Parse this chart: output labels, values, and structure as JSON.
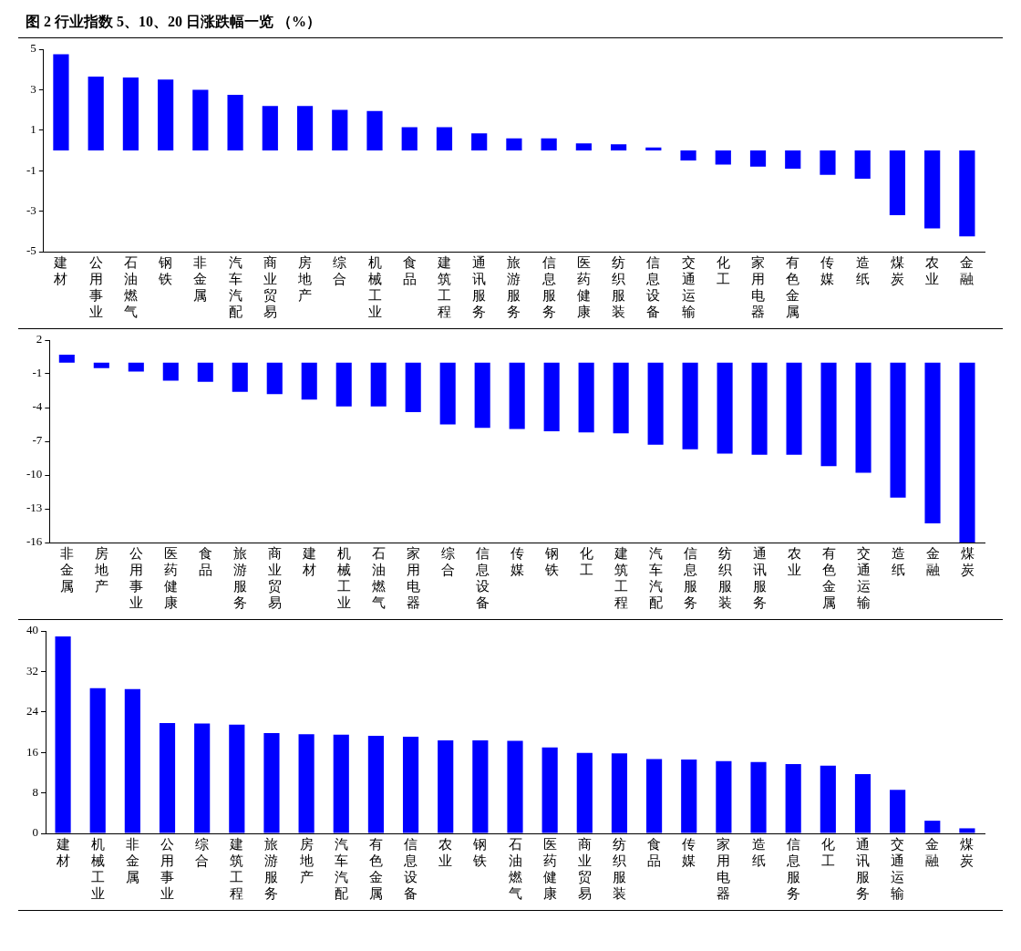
{
  "chart_data": [
    {
      "type": "bar",
      "title": "图 2 行业指数 5、10、20 日涨跌幅一览 （%）",
      "categories": [
        "建材",
        "公用事业",
        "石油燃气",
        "钢铁",
        "非金属",
        "汽车汽配",
        "商业贸易",
        "房地产",
        "综合",
        "机械工业",
        "食品",
        "建筑工程",
        "通讯服务",
        "旅游服务",
        "信息服务",
        "医药健康",
        "纺织服装",
        "信息设备",
        "交通运输",
        "化工",
        "家用电器",
        "有色金属",
        "传媒",
        "造纸",
        "煤炭",
        "农业",
        "金融"
      ],
      "values": [
        4.75,
        3.65,
        3.6,
        3.5,
        3.0,
        2.75,
        2.2,
        2.2,
        2.0,
        1.95,
        1.15,
        1.15,
        0.85,
        0.6,
        0.6,
        0.35,
        0.3,
        0.15,
        -0.5,
        -0.7,
        -0.8,
        -0.9,
        -1.2,
        -1.4,
        -3.2,
        -3.85,
        -4.25
      ],
      "color": "#0000ff",
      "ylim": [
        -5,
        5
      ],
      "yticks": [
        -5,
        -3,
        -1,
        1,
        3,
        5
      ],
      "grid": false,
      "legend": false
    },
    {
      "type": "bar",
      "categories": [
        "非金属",
        "房地产",
        "公用事业",
        "医药健康",
        "食品",
        "旅游服务",
        "商业贸易",
        "建材",
        "机械工业",
        "石油燃气",
        "家用电器",
        "综合",
        "信息设备",
        "传媒",
        "钢铁",
        "化工",
        "建筑工程",
        "汽车汽配",
        "信息服务",
        "纺织服装",
        "通讯服务",
        "农业",
        "有色金属",
        "交通运输",
        "造纸",
        "金融",
        "煤炭"
      ],
      "values": [
        0.7,
        -0.5,
        -0.8,
        -1.6,
        -1.7,
        -2.6,
        -2.8,
        -3.3,
        -3.9,
        -3.9,
        -4.4,
        -5.5,
        -5.8,
        -5.9,
        -6.1,
        -6.2,
        -6.3,
        -7.3,
        -7.7,
        -8.1,
        -8.2,
        -8.2,
        -9.2,
        -9.8,
        -12.0,
        -14.3,
        -16.0
      ],
      "color": "#0000ff",
      "ylim": [
        -16,
        2
      ],
      "yticks": [
        -16,
        -13,
        -10,
        -7,
        -4,
        -1,
        2
      ],
      "grid": false,
      "legend": false
    },
    {
      "type": "bar",
      "categories": [
        "建材",
        "机械工业",
        "非金属",
        "公用事业",
        "综合",
        "建筑工程",
        "旅游服务",
        "房地产",
        "汽车汽配",
        "有色金属",
        "信息设备",
        "农业",
        "钢铁",
        "石油燃气",
        "医药健康",
        "商业贸易",
        "纺织服装",
        "食品",
        "传媒",
        "家用电器",
        "造纸",
        "信息服务",
        "化工",
        "通讯服务",
        "交通运输",
        "金融",
        "煤炭"
      ],
      "values": [
        38.9,
        28.7,
        28.5,
        21.8,
        21.7,
        21.5,
        19.8,
        19.6,
        19.5,
        19.3,
        19.1,
        18.4,
        18.4,
        18.3,
        17.0,
        15.9,
        15.8,
        14.7,
        14.6,
        14.3,
        14.1,
        13.7,
        13.4,
        11.7,
        8.6,
        2.5,
        1.0
      ],
      "color": "#0000ff",
      "ylim": [
        0,
        40
      ],
      "yticks": [
        0,
        8,
        16,
        24,
        32,
        40
      ],
      "grid": false,
      "legend": false
    }
  ]
}
